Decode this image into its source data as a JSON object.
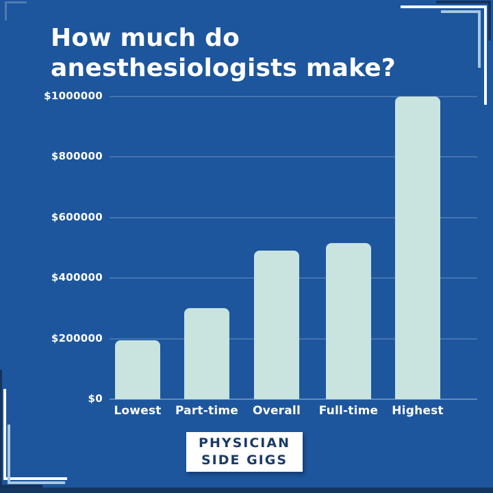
{
  "title": {
    "full": "How much do anesthesiologists make?",
    "line1": "How much do",
    "line2": "anesthesiologists make?"
  },
  "chart_data": {
    "type": "bar",
    "title": "How much do anesthesiologists make?",
    "categories": [
      "Lowest",
      "Part-time",
      "Overall",
      "Full-time",
      "Highest"
    ],
    "values": [
      195000,
      300000,
      490000,
      515000,
      1000000
    ],
    "xlabel": "",
    "ylabel": "",
    "ylim": [
      0,
      1000000
    ],
    "grid": true,
    "legend": "none",
    "y_ticks": [
      {
        "label": "$1000000",
        "value": 1000000
      },
      {
        "label": "$800000",
        "value": 800000
      },
      {
        "label": "$600000",
        "value": 600000
      },
      {
        "label": "$400000",
        "value": 400000
      },
      {
        "label": "$200000",
        "value": 200000
      },
      {
        "label": "$0",
        "value": 0
      }
    ],
    "bar_color": "#c9e3df"
  },
  "footer": {
    "logo_line1": "PHYSICIAN",
    "logo_line2": "SIDE GIGS"
  },
  "colors": {
    "background": "#1d569d",
    "bar": "#c9e3df",
    "text": "#ffffff",
    "accent_navy": "#15335a",
    "bracket_pale": "#a8c8e0",
    "logo_bg": "#ffffff",
    "logo_text": "#1b3a66"
  }
}
